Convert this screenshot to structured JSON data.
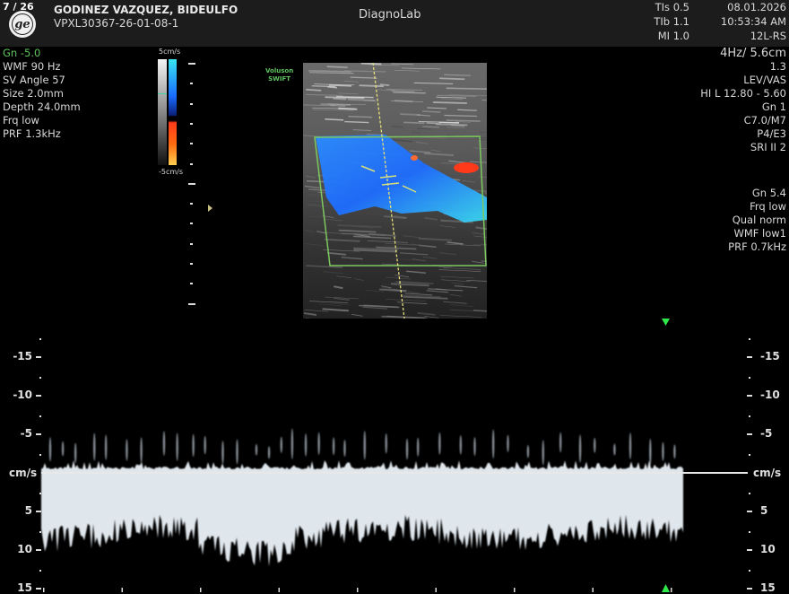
{
  "header": {
    "image_counter": "7 / 26",
    "logo": "GE",
    "patient_name": "GODINEZ VAZQUEZ, BIDEULFO",
    "patient_id": "VPXL30367-26-01-08-1",
    "institution": "DiagnoLab",
    "tis": "TIs 0.5",
    "tib": "TIb 1.1",
    "mi": "MI 1.0",
    "date": "08.01.2026",
    "time": "10:53:34 AM",
    "probe": "12L-RS"
  },
  "left_params": [
    "Gn -5.0",
    "WMF 90 Hz",
    "SV Angle 57",
    "Size  2.0mm",
    "Depth 24.0mm",
    "Frq low",
    "PRF  1.3kHz"
  ],
  "color_scale": {
    "top": "5cm/s",
    "bottom": "-5cm/s"
  },
  "brand_label": [
    "Voluson",
    "SWIFT"
  ],
  "right_params": [
    "4Hz/ 5.6cm",
    "1.3",
    "LEV/VAS",
    "HI L  12.80 - 5.60",
    "Gn  1",
    "C7.0/M7",
    "P4/E3",
    "SRI II 2"
  ],
  "right_params2": [
    "Gn  5.4",
    "Frq low",
    "Qual norm",
    "WMF low1",
    "PRF  0.7kHz"
  ],
  "spectrum": {
    "unit": "cm/s",
    "ticks": [
      {
        "label": "-15",
        "value": -15
      },
      {
        "label": "-10",
        "value": -10
      },
      {
        "label": "-5",
        "value": -5
      },
      {
        "label": "5",
        "value": 5
      },
      {
        "label": "10",
        "value": 10
      },
      {
        "label": "15",
        "value": 15
      }
    ]
  },
  "colors": {
    "accent_green": "#5ec45e",
    "header_bg": "#1c1c1c",
    "doppler_blue": "#1e6cff",
    "doppler_red": "#ff3a1a",
    "marker_yellow": "#e8e07a"
  }
}
